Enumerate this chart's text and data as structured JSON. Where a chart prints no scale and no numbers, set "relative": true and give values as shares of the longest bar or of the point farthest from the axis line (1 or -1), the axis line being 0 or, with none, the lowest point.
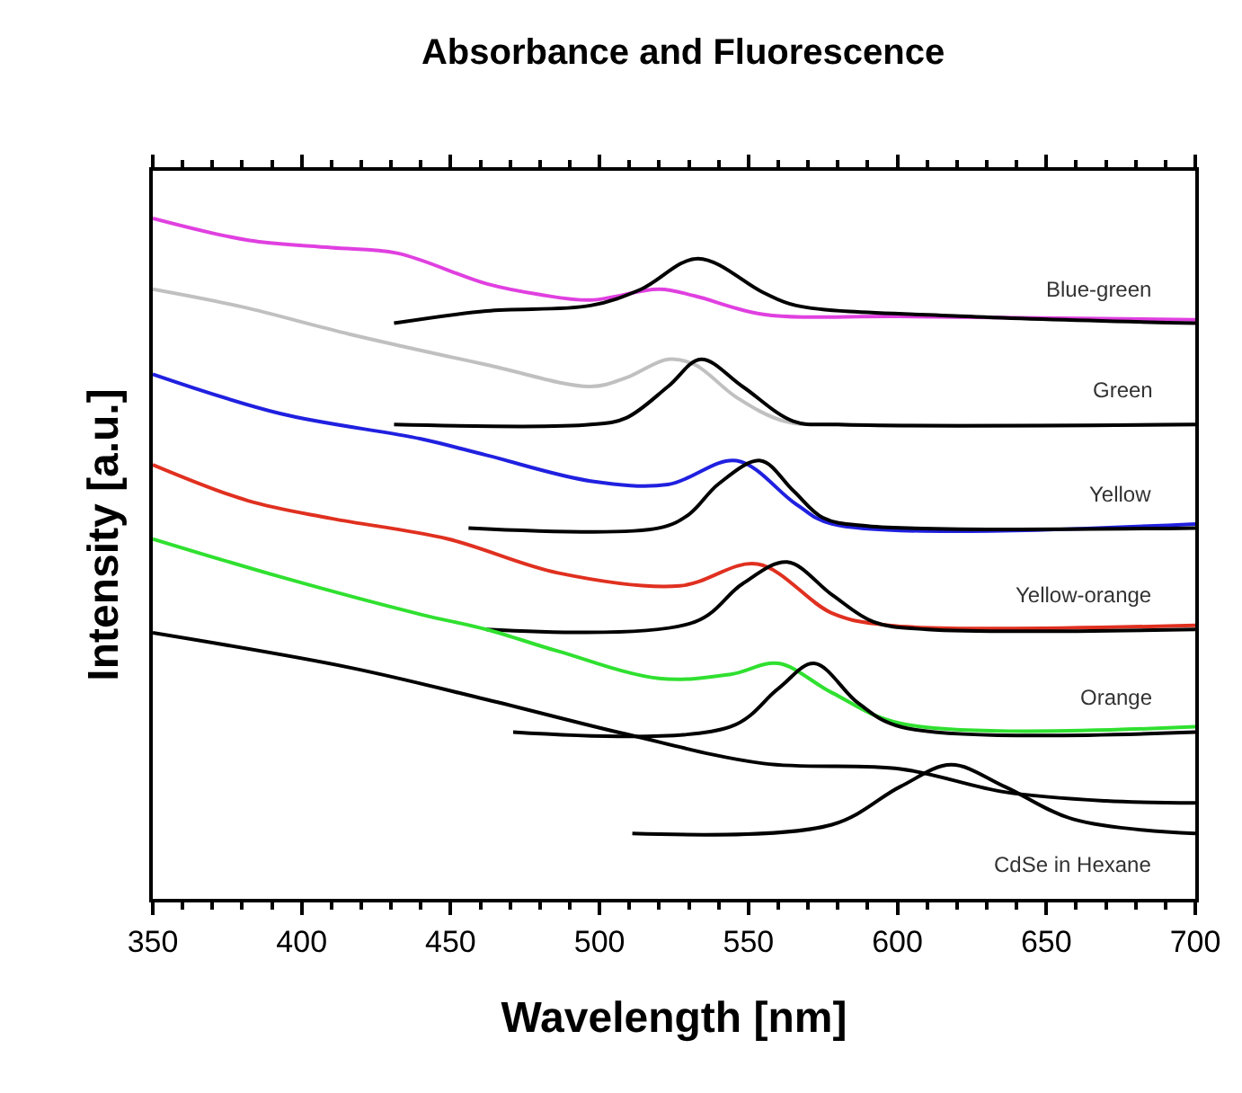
{
  "chart_data": {
    "type": "line",
    "title": "Absorbance and Fluorescence",
    "xlabel": "Wavelength [nm]",
    "ylabel": "Intensity [a.u.]",
    "relative": true,
    "xlim": [
      350,
      700
    ],
    "xticks": [
      350,
      400,
      450,
      500,
      550,
      600,
      650,
      700
    ],
    "legend": false,
    "line_style": "solid",
    "marker": "none",
    "series": [
      {
        "color": "#e040e0",
        "x": [
          350,
          382,
          410,
          432,
          462,
          480,
          497,
          520,
          532,
          555,
          601,
          700
        ],
        "values": [
          1.0,
          0.968,
          0.957,
          0.949,
          0.904,
          0.888,
          0.88,
          0.896,
          0.886,
          0.859,
          0.856,
          0.851
        ]
      },
      {
        "name": "Blue-green",
        "color": "#000000",
        "x": [
          431,
          462,
          497,
          514,
          533,
          555,
          566,
          624,
          700
        ],
        "values": [
          0.846,
          0.864,
          0.872,
          0.896,
          0.941,
          0.891,
          0.872,
          0.856,
          0.846
        ]
      },
      {
        "color": "#c0c0c0",
        "x": [
          350,
          380,
          416,
          462,
          497,
          509,
          523,
          532,
          546,
          562,
          580,
          700
        ],
        "values": [
          0.896,
          0.87,
          0.83,
          0.785,
          0.753,
          0.766,
          0.793,
          0.785,
          0.737,
          0.702,
          0.697,
          0.697
        ]
      },
      {
        "name": "Green",
        "color": "#000000",
        "x": [
          431,
          497,
          509,
          523,
          534,
          548,
          565,
          580,
          700
        ],
        "values": [
          0.697,
          0.697,
          0.707,
          0.753,
          0.793,
          0.753,
          0.702,
          0.697,
          0.697
        ]
      },
      {
        "color": "#2020e0",
        "x": [
          350,
          393,
          440,
          462,
          497,
          523,
          546,
          566,
          578,
          700
        ],
        "values": [
          0.771,
          0.713,
          0.676,
          0.652,
          0.614,
          0.609,
          0.644,
          0.58,
          0.551,
          0.551
        ]
      },
      {
        "name": "Yellow",
        "color": "#000000",
        "x": [
          456,
          520,
          530,
          540,
          554,
          565,
          575,
          590,
          700
        ],
        "values": [
          0.545,
          0.545,
          0.565,
          0.61,
          0.644,
          0.6,
          0.56,
          0.548,
          0.545
        ]
      },
      {
        "color": "#e03020",
        "x": [
          350,
          382,
          410,
          449,
          486,
          527,
          553,
          578,
          597,
          700
        ],
        "values": [
          0.638,
          0.585,
          0.559,
          0.529,
          0.479,
          0.46,
          0.492,
          0.42,
          0.402,
          0.402
        ]
      },
      {
        "name": "Yellow-orange",
        "color": "#000000",
        "x": [
          462,
          532,
          548,
          563,
          578,
          592,
          610,
          700
        ],
        "values": [
          0.396,
          0.407,
          0.463,
          0.495,
          0.447,
          0.407,
          0.396,
          0.396
        ]
      },
      {
        "color": "#30e030",
        "x": [
          350,
          393,
          440,
          462,
          486,
          520,
          544,
          560,
          578,
          601,
          700
        ],
        "values": [
          0.529,
          0.473,
          0.418,
          0.396,
          0.364,
          0.324,
          0.33,
          0.346,
          0.303,
          0.258,
          0.253
        ]
      },
      {
        "name": "Orange",
        "color": "#000000",
        "x": [
          471,
          544,
          560,
          572,
          587,
          601,
          700
        ],
        "values": [
          0.245,
          0.253,
          0.309,
          0.346,
          0.287,
          0.253,
          0.245
        ]
      },
      {
        "color": "#000000",
        "x": [
          350,
          416,
          462,
          509,
          555,
          601,
          636,
          670,
          700
        ],
        "values": [
          0.391,
          0.34,
          0.293,
          0.242,
          0.199,
          0.191,
          0.157,
          0.144,
          0.141
        ]
      },
      {
        "name": "CdSe in Hexane",
        "color": "#000000",
        "x": [
          511,
          578,
          601,
          618,
          636,
          659,
          700
        ],
        "values": [
          0.096,
          0.109,
          0.165,
          0.197,
          0.165,
          0.117,
          0.096
        ]
      }
    ]
  }
}
